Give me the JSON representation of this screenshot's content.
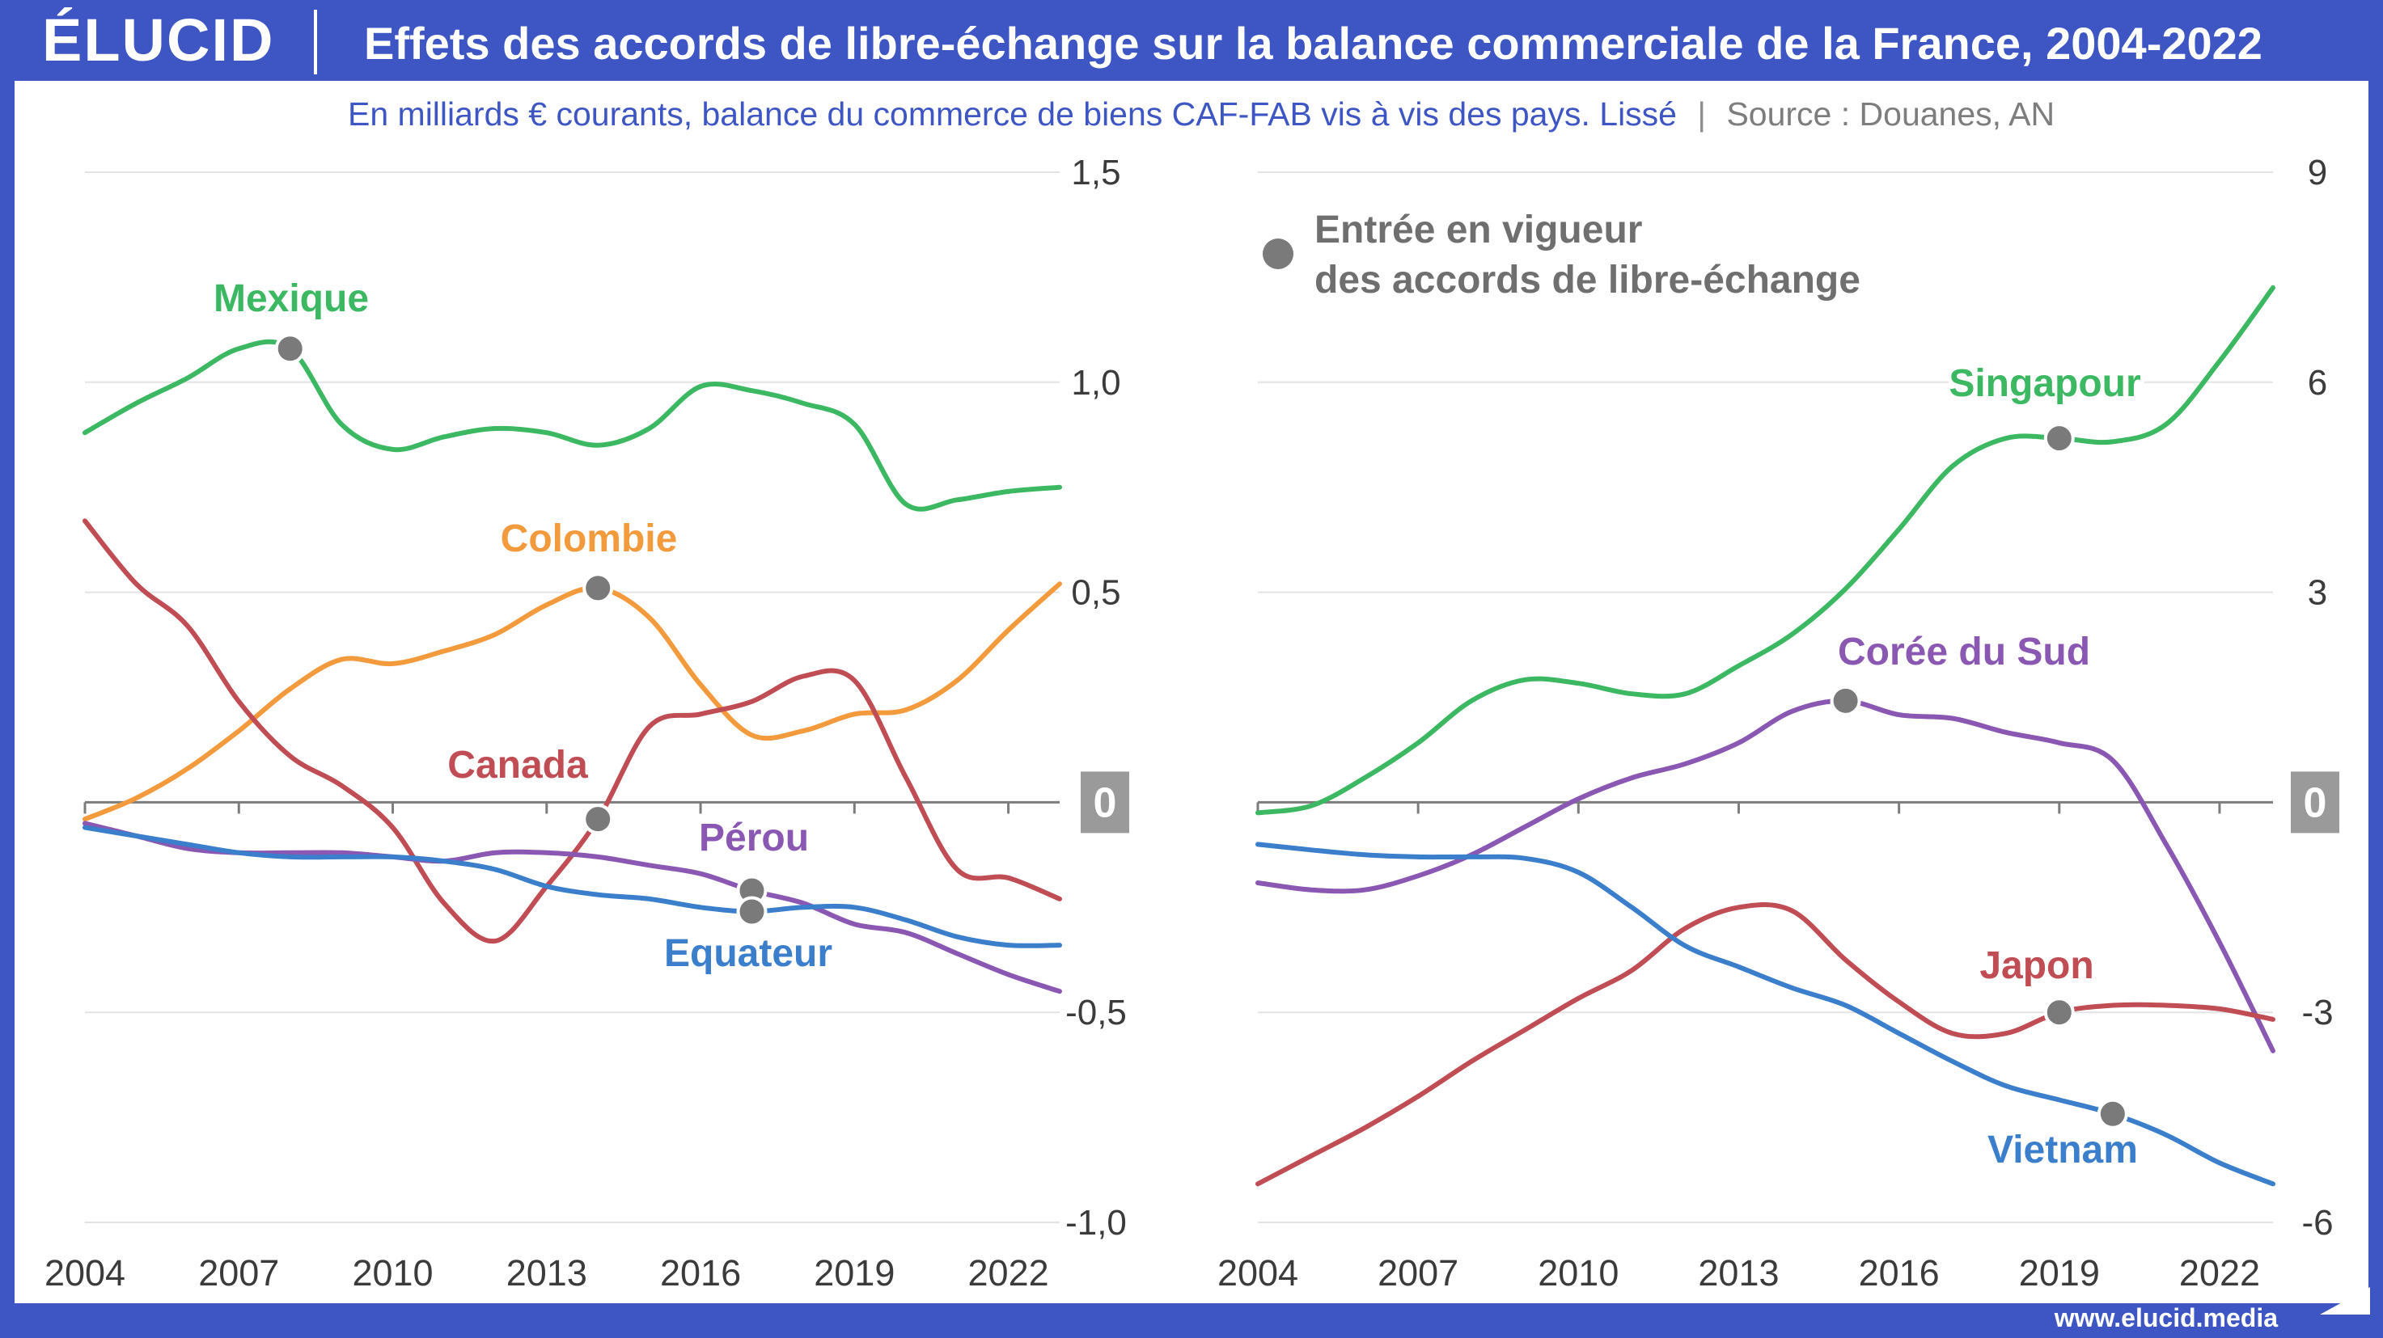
{
  "header": {
    "logo": "ÉLUCID",
    "title": "Effets des accords de libre-échange sur la balance commerciale de la France, 2004-2022"
  },
  "subtitle": {
    "main": "En milliards € courants, balance du commerce de biens CAF-FAB vis à vis des pays. Lissé",
    "separator": "|",
    "source": "Source : Douanes, AN"
  },
  "footer": {
    "url": "www.elucid.media"
  },
  "legend": {
    "line1": "Entrée en vigueur",
    "line2": "des accords de libre-échange",
    "marker_color": "#7a7a7a"
  },
  "chart_data": [
    {
      "type": "line",
      "x_ticks": [
        2004,
        2007,
        2010,
        2013,
        2016,
        2019,
        2022
      ],
      "xlim": [
        2004,
        2023
      ],
      "ylim": [
        -1.0,
        1.5
      ],
      "y_ticks": [
        1.5,
        1.0,
        0.5,
        0,
        -0.5,
        -1.0
      ],
      "y_tick_labels": [
        "1,5",
        "1,0",
        "0,5",
        "0",
        "-0,5",
        "-1,0"
      ],
      "y_axis_side": "right",
      "grid": true,
      "series": [
        {
          "name": "Mexique",
          "color": "#3db862",
          "x": [
            2004,
            2005,
            2006,
            2007,
            2008,
            2009,
            2010,
            2011,
            2012,
            2013,
            2014,
            2015,
            2016,
            2017,
            2018,
            2019,
            2020,
            2021,
            2022,
            2023
          ],
          "y": [
            0.88,
            0.95,
            1.01,
            1.08,
            1.08,
            0.9,
            0.84,
            0.87,
            0.89,
            0.88,
            0.85,
            0.89,
            0.99,
            0.98,
            0.95,
            0.9,
            0.71,
            0.72,
            0.74,
            0.75
          ],
          "agreement": {
            "x": 2008,
            "y": 1.08
          }
        },
        {
          "name": "Colombie",
          "color": "#f39a3c",
          "x": [
            2004,
            2005,
            2006,
            2007,
            2008,
            2009,
            2010,
            2011,
            2012,
            2013,
            2014,
            2015,
            2016,
            2017,
            2018,
            2019,
            2020,
            2021,
            2022,
            2023
          ],
          "y": [
            -0.04,
            0.01,
            0.08,
            0.17,
            0.27,
            0.34,
            0.33,
            0.36,
            0.4,
            0.47,
            0.51,
            0.44,
            0.28,
            0.16,
            0.17,
            0.21,
            0.22,
            0.29,
            0.41,
            0.52
          ],
          "agreement": {
            "x": 2014,
            "y": 0.51
          }
        },
        {
          "name": "Canada",
          "color": "#c14d54",
          "x": [
            2004,
            2005,
            2006,
            2007,
            2008,
            2009,
            2010,
            2011,
            2012,
            2013,
            2014,
            2015,
            2016,
            2017,
            2018,
            2019,
            2020,
            2021,
            2022,
            2023
          ],
          "y": [
            0.67,
            0.52,
            0.42,
            0.24,
            0.11,
            0.04,
            -0.06,
            -0.24,
            -0.33,
            -0.2,
            -0.04,
            0.18,
            0.21,
            0.24,
            0.3,
            0.29,
            0.06,
            -0.16,
            -0.18,
            -0.23
          ],
          "agreement": {
            "x": 2014,
            "y": -0.04
          }
        },
        {
          "name": "Pérou",
          "color": "#8a57b3",
          "x": [
            2004,
            2005,
            2006,
            2007,
            2008,
            2009,
            2010,
            2011,
            2012,
            2013,
            2014,
            2015,
            2016,
            2017,
            2018,
            2019,
            2020,
            2021,
            2022,
            2023
          ],
          "y": [
            -0.05,
            -0.08,
            -0.11,
            -0.12,
            -0.12,
            -0.12,
            -0.13,
            -0.14,
            -0.12,
            -0.12,
            -0.13,
            -0.15,
            -0.17,
            -0.21,
            -0.24,
            -0.29,
            -0.31,
            -0.36,
            -0.41,
            -0.45
          ],
          "agreement": {
            "x": 2017,
            "y": -0.21
          }
        },
        {
          "name": "Equateur",
          "color": "#3a7ecc",
          "x": [
            2004,
            2005,
            2006,
            2007,
            2008,
            2009,
            2010,
            2011,
            2012,
            2013,
            2014,
            2015,
            2016,
            2017,
            2018,
            2019,
            2020,
            2021,
            2022,
            2023
          ],
          "y": [
            -0.06,
            -0.08,
            -0.1,
            -0.12,
            -0.13,
            -0.13,
            -0.13,
            -0.14,
            -0.16,
            -0.2,
            -0.22,
            -0.23,
            -0.25,
            -0.26,
            -0.25,
            -0.25,
            -0.28,
            -0.32,
            -0.34,
            -0.34
          ],
          "agreement": {
            "x": 2017,
            "y": -0.26
          }
        }
      ]
    },
    {
      "type": "line",
      "x_ticks": [
        2004,
        2007,
        2010,
        2013,
        2016,
        2019,
        2022
      ],
      "xlim": [
        2004,
        2023
      ],
      "ylim": [
        -6,
        9
      ],
      "y_ticks": [
        9,
        6,
        3,
        0,
        -3,
        -6
      ],
      "y_tick_labels": [
        "9",
        "6",
        "3",
        "0",
        "-3",
        "-6"
      ],
      "y_axis_side": "right",
      "grid": true,
      "series": [
        {
          "name": "Singapour",
          "color": "#3db862",
          "x": [
            2004,
            2005,
            2006,
            2007,
            2008,
            2009,
            2010,
            2011,
            2012,
            2013,
            2014,
            2015,
            2016,
            2017,
            2018,
            2019,
            2020,
            2021,
            2022,
            2023
          ],
          "y": [
            -0.15,
            -0.05,
            0.35,
            0.85,
            1.45,
            1.75,
            1.7,
            1.55,
            1.55,
            1.95,
            2.4,
            3.05,
            3.9,
            4.8,
            5.2,
            5.2,
            5.15,
            5.4,
            6.3,
            7.35
          ],
          "agreement": {
            "x": 2019,
            "y": 5.2
          }
        },
        {
          "name": "Corée du Sud",
          "color": "#8a57b3",
          "x": [
            2004,
            2005,
            2006,
            2007,
            2008,
            2009,
            2010,
            2011,
            2012,
            2013,
            2014,
            2015,
            2016,
            2017,
            2018,
            2019,
            2020,
            2021,
            2022,
            2023
          ],
          "y": [
            -1.15,
            -1.25,
            -1.25,
            -1.05,
            -0.75,
            -0.35,
            0.05,
            0.35,
            0.55,
            0.85,
            1.3,
            1.45,
            1.25,
            1.2,
            1.0,
            0.85,
            0.6,
            -0.6,
            -2.0,
            -3.55
          ],
          "agreement": {
            "x": 2015,
            "y": 1.45
          }
        },
        {
          "name": "Japon",
          "color": "#c14d54",
          "x": [
            2004,
            2005,
            2006,
            2007,
            2008,
            2009,
            2010,
            2011,
            2012,
            2013,
            2014,
            2015,
            2016,
            2017,
            2018,
            2019,
            2020,
            2021,
            2022,
            2023
          ],
          "y": [
            -5.45,
            -5.05,
            -4.65,
            -4.2,
            -3.7,
            -3.25,
            -2.8,
            -2.4,
            -1.8,
            -1.5,
            -1.55,
            -2.25,
            -2.85,
            -3.3,
            -3.3,
            -3.0,
            -2.9,
            -2.9,
            -2.95,
            -3.1
          ],
          "agreement": {
            "x": 2019,
            "y": -3.0
          }
        },
        {
          "name": "Vietnam",
          "color": "#3a7ecc",
          "x": [
            2004,
            2005,
            2006,
            2007,
            2008,
            2009,
            2010,
            2011,
            2012,
            2013,
            2014,
            2015,
            2016,
            2017,
            2018,
            2019,
            2020,
            2021,
            2022,
            2023
          ],
          "y": [
            -0.6,
            -0.68,
            -0.75,
            -0.78,
            -0.78,
            -0.8,
            -1.0,
            -1.5,
            -2.05,
            -2.35,
            -2.65,
            -2.9,
            -3.3,
            -3.7,
            -4.05,
            -4.25,
            -4.45,
            -4.75,
            -5.15,
            -5.45
          ],
          "agreement": {
            "x": 2020,
            "y": -4.45
          }
        }
      ]
    }
  ]
}
